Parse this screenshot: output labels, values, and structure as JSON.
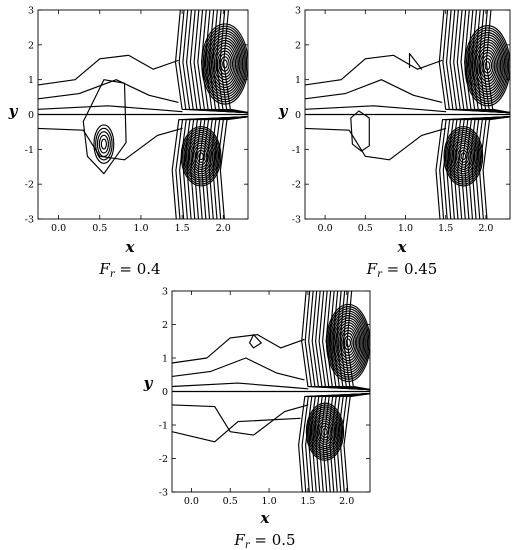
{
  "chart_data": [
    {
      "type": "contour",
      "caption_var": "F",
      "caption_sub": "r",
      "caption_value": "0.4",
      "xlabel": "x",
      "ylabel": "y",
      "xlim": [
        -0.25,
        2.3
      ],
      "ylim": [
        -3,
        3
      ],
      "xticks": [
        "0.0",
        "0.5",
        "1.0",
        "1.5",
        "2.0"
      ],
      "yticks": [
        "-3",
        "-2",
        "-1",
        "0",
        "1",
        "2",
        "3"
      ],
      "extremum_centers": [
        [
          2.02,
          1.45
        ],
        [
          1.73,
          -1.2
        ],
        [
          0.55,
          -0.85
        ]
      ]
    },
    {
      "type": "contour",
      "caption_var": "F",
      "caption_sub": "r",
      "caption_value": "0.45",
      "xlabel": "x",
      "ylabel": "y",
      "xlim": [
        -0.25,
        2.3
      ],
      "ylim": [
        -3,
        3
      ],
      "xticks": [
        "0.0",
        "0.5",
        "1.0",
        "1.5",
        "2.0"
      ],
      "yticks": [
        "-3",
        "-2",
        "-1",
        "0",
        "1",
        "2",
        "3"
      ],
      "extremum_centers": [
        [
          2.02,
          1.4
        ],
        [
          1.72,
          -1.2
        ]
      ]
    },
    {
      "type": "contour",
      "caption_var": "F",
      "caption_sub": "r",
      "caption_value": "0.5",
      "xlabel": "x",
      "ylabel": "y",
      "xlim": [
        -0.25,
        2.3
      ],
      "ylim": [
        -3,
        3
      ],
      "xticks": [
        "0.0",
        "0.5",
        "1.0",
        "1.5",
        "2.0"
      ],
      "yticks": [
        "-3",
        "-2",
        "-1",
        "0",
        "1",
        "2",
        "3"
      ],
      "extremum_centers": [
        [
          2.02,
          1.45
        ],
        [
          1.72,
          -1.2
        ]
      ]
    }
  ]
}
